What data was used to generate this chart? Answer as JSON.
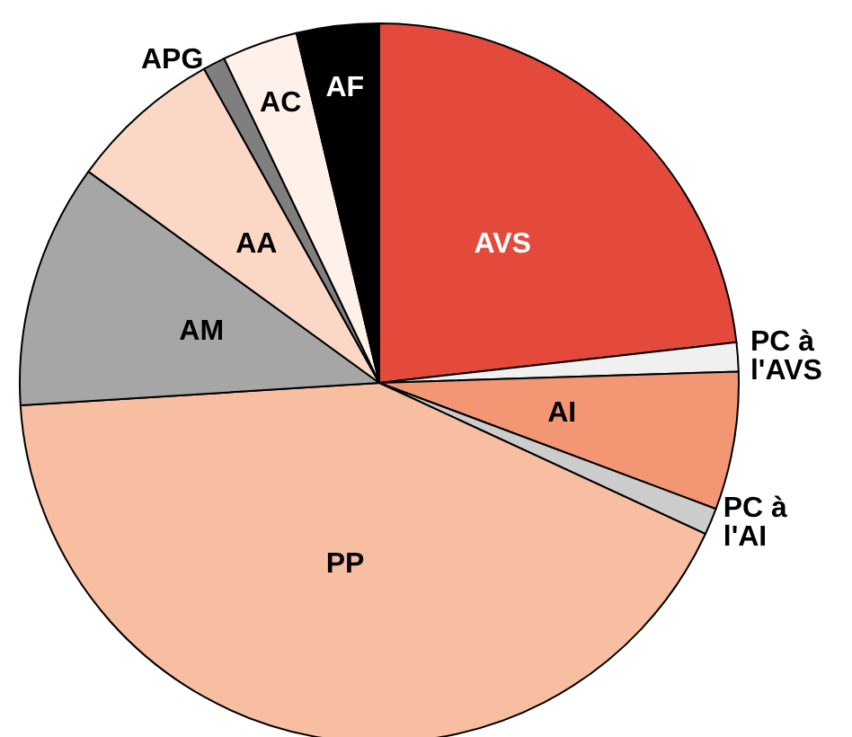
{
  "chart_data": {
    "type": "pie",
    "categories": [
      "AVS",
      "PC à l'AVS",
      "AI",
      "PC à l'AI",
      "PP",
      "AM",
      "AA",
      "APG",
      "AC",
      "AF"
    ],
    "values": [
      23.2,
      1.3,
      6.2,
      1.2,
      42.1,
      11,
      6.9,
      1,
      3.4,
      3.7
    ],
    "colors": [
      "#e34a3c",
      "#f0f0f0",
      "#f29674",
      "#cccccc",
      "#f7bea1",
      "#a6a6a6",
      "#fbd7c5",
      "#7f7f7f",
      "#fff0ea",
      "#000000"
    ],
    "legend": false
  }
}
